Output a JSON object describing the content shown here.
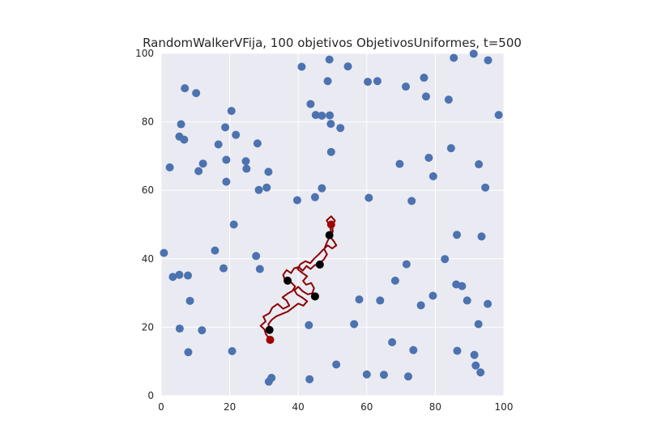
{
  "chart_data": {
    "type": "scatter",
    "title": "RandomWalkerVFija, 100 objetivos ObjetivosUniformes, t=500",
    "xlabel": "",
    "ylabel": "",
    "xlim": [
      0,
      100
    ],
    "ylim": [
      0,
      100
    ],
    "xticks": [
      "0",
      "20",
      "40",
      "60",
      "80",
      "100"
    ],
    "yticks": [
      "0",
      "20",
      "40",
      "60",
      "80",
      "100"
    ],
    "grid": true,
    "background": "#eaeaf2",
    "series": [
      {
        "role": "targets",
        "color": "#4c72b0",
        "points": [
          [
            0.8,
            41.7
          ],
          [
            3.4,
            34.7
          ],
          [
            5.3,
            35.3
          ],
          [
            7.8,
            35.1
          ],
          [
            8.4,
            27.7
          ],
          [
            5.4,
            19.6
          ],
          [
            7.9,
            12.7
          ],
          [
            11.9,
            19.1
          ],
          [
            15.7,
            42.4
          ],
          [
            18.2,
            37.2
          ],
          [
            20.7,
            13.0
          ],
          [
            21.2,
            50.0
          ],
          [
            27.7,
            40.8
          ],
          [
            28.8,
            37.0
          ],
          [
            31.4,
            4.1
          ],
          [
            32.2,
            5.2
          ],
          [
            2.5,
            66.7
          ],
          [
            5.3,
            75.7
          ],
          [
            5.8,
            79.3
          ],
          [
            6.7,
            74.8
          ],
          [
            6.9,
            89.8
          ],
          [
            10.2,
            88.4
          ],
          [
            10.9,
            65.6
          ],
          [
            12.2,
            67.8
          ],
          [
            16.7,
            73.4
          ],
          [
            18.7,
            78.4
          ],
          [
            19.0,
            68.9
          ],
          [
            19.0,
            62.5
          ],
          [
            20.5,
            83.2
          ],
          [
            21.8,
            76.2
          ],
          [
            24.7,
            68.5
          ],
          [
            24.9,
            66.3
          ],
          [
            28.1,
            73.7
          ],
          [
            28.5,
            60.1
          ],
          [
            30.8,
            60.8
          ],
          [
            31.3,
            65.4
          ],
          [
            39.7,
            57.1
          ],
          [
            41.0,
            96.1
          ],
          [
            43.6,
            85.2
          ],
          [
            44.9,
            58.0
          ],
          [
            45.1,
            82.0
          ],
          [
            46.9,
            60.6
          ],
          [
            46.9,
            81.8
          ],
          [
            48.6,
            91.9
          ],
          [
            49.1,
            98.2
          ],
          [
            49.2,
            81.9
          ],
          [
            49.5,
            79.4
          ],
          [
            49.6,
            71.2
          ],
          [
            52.3,
            78.2
          ],
          [
            54.5,
            96.2
          ],
          [
            60.3,
            91.7
          ],
          [
            60.6,
            57.8
          ],
          [
            63.1,
            91.9
          ],
          [
            69.6,
            67.7
          ],
          [
            71.4,
            90.3
          ],
          [
            73.1,
            56.9
          ],
          [
            76.7,
            92.9
          ],
          [
            77.3,
            87.4
          ],
          [
            78.1,
            69.5
          ],
          [
            79.4,
            64.1
          ],
          [
            83.9,
            86.5
          ],
          [
            84.6,
            72.3
          ],
          [
            85.4,
            98.7
          ],
          [
            86.3,
            47.0
          ],
          [
            91.2,
            99.9
          ],
          [
            92.7,
            67.6
          ],
          [
            93.5,
            46.5
          ],
          [
            94.6,
            60.8
          ],
          [
            95.4,
            98.0
          ],
          [
            98.5,
            82.0
          ],
          [
            43.1,
            20.6
          ],
          [
            43.3,
            4.8
          ],
          [
            51.1,
            9.1
          ],
          [
            56.3,
            20.9
          ],
          [
            57.8,
            28.1
          ],
          [
            60.0,
            6.2
          ],
          [
            63.9,
            27.8
          ],
          [
            65.0,
            6.1
          ],
          [
            67.4,
            15.6
          ],
          [
            68.3,
            33.6
          ],
          [
            71.6,
            38.4
          ],
          [
            72.1,
            5.6
          ],
          [
            73.6,
            13.3
          ],
          [
            75.8,
            26.4
          ],
          [
            79.3,
            29.2
          ],
          [
            82.8,
            39.9
          ],
          [
            86.1,
            32.5
          ],
          [
            86.4,
            13.1
          ],
          [
            87.8,
            32.0
          ],
          [
            89.3,
            27.8
          ],
          [
            91.4,
            11.9
          ],
          [
            91.8,
            8.8
          ],
          [
            92.6,
            20.9
          ],
          [
            93.2,
            6.8
          ],
          [
            95.3,
            26.8
          ]
        ]
      },
      {
        "role": "walker-path",
        "color": "#8b0000",
        "points": [
          [
            31.8,
            16.3
          ],
          [
            30.6,
            17.9
          ],
          [
            30.1,
            19.4
          ],
          [
            29.0,
            20.4
          ],
          [
            30.5,
            21.7
          ],
          [
            29.8,
            23.1
          ],
          [
            31.6,
            24.1
          ],
          [
            32.4,
            25.7
          ],
          [
            34.0,
            26.8
          ],
          [
            35.6,
            25.4
          ],
          [
            37.4,
            26.3
          ],
          [
            36.6,
            27.8
          ],
          [
            35.4,
            28.7
          ],
          [
            36.9,
            29.8
          ],
          [
            38.3,
            30.6
          ],
          [
            39.1,
            31.9
          ],
          [
            37.9,
            33.1
          ],
          [
            36.2,
            33.6
          ],
          [
            35.6,
            35.3
          ],
          [
            36.6,
            36.7
          ],
          [
            37.9,
            35.8
          ],
          [
            38.8,
            37.2
          ],
          [
            40.2,
            37.6
          ],
          [
            41.3,
            36.5
          ],
          [
            42.4,
            37.9
          ],
          [
            43.6,
            37.0
          ],
          [
            44.8,
            38.1
          ],
          [
            46.2,
            38.6
          ],
          [
            47.5,
            39.8
          ],
          [
            48.4,
            41.3
          ],
          [
            47.6,
            42.8
          ],
          [
            48.3,
            44.6
          ],
          [
            49.0,
            46.1
          ],
          [
            49.6,
            47.8
          ],
          [
            49.3,
            49.5
          ],
          [
            48.3,
            51.2
          ],
          [
            49.6,
            52.4
          ],
          [
            50.7,
            51.1
          ],
          [
            49.9,
            49.8
          ],
          [
            50.1,
            48.0
          ],
          [
            49.3,
            46.4
          ],
          [
            50.4,
            45.1
          ],
          [
            51.1,
            43.9
          ],
          [
            49.9,
            43.0
          ],
          [
            48.6,
            43.9
          ],
          [
            47.2,
            42.6
          ],
          [
            46.0,
            41.3
          ],
          [
            44.6,
            40.0
          ],
          [
            43.5,
            38.7
          ],
          [
            42.1,
            39.3
          ],
          [
            40.6,
            38.4
          ],
          [
            39.8,
            37.0
          ],
          [
            41.1,
            35.9
          ],
          [
            42.6,
            34.9
          ],
          [
            41.4,
            33.5
          ],
          [
            42.3,
            32.4
          ],
          [
            43.8,
            32.9
          ],
          [
            44.6,
            31.4
          ],
          [
            44.1,
            29.9
          ],
          [
            42.8,
            29.6
          ],
          [
            41.3,
            30.5
          ],
          [
            40.0,
            31.8
          ],
          [
            38.9,
            30.8
          ],
          [
            39.6,
            29.6
          ],
          [
            41.1,
            28.7
          ],
          [
            42.6,
            27.6
          ],
          [
            41.5,
            26.3
          ],
          [
            40.0,
            26.9
          ],
          [
            38.4,
            25.7
          ],
          [
            37.0,
            24.6
          ],
          [
            35.3,
            23.9
          ],
          [
            33.6,
            23.2
          ],
          [
            32.2,
            22.1
          ],
          [
            31.3,
            20.9
          ],
          [
            31.6,
            19.1
          ]
        ]
      },
      {
        "role": "start-end",
        "color": "#a00000",
        "points": [
          [
            31.8,
            16.3
          ],
          [
            49.6,
            50.0
          ]
        ]
      },
      {
        "role": "visited-targets",
        "color": "#000000",
        "points": [
          [
            31.6,
            19.2
          ],
          [
            36.9,
            33.6
          ],
          [
            44.9,
            29.0
          ],
          [
            46.3,
            38.3
          ],
          [
            49.1,
            46.9
          ]
        ]
      }
    ]
  }
}
